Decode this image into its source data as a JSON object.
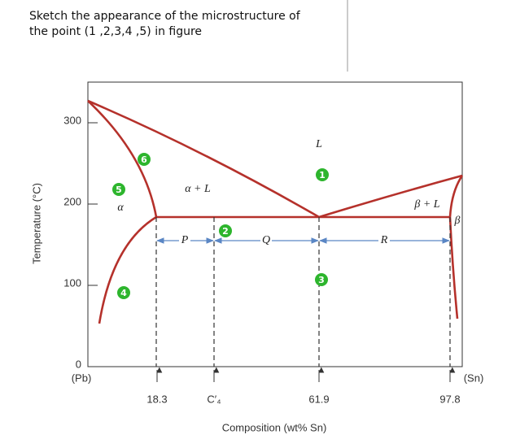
{
  "question": {
    "lines": [
      "Sketch the appearance of the microstructure of",
      "the point (1 ,2,3,4 ,5) in figure"
    ]
  },
  "figure": {
    "y_label": "Temperature (°C)",
    "x_label": "Composition (wt% Sn)",
    "ylim": [
      0,
      350
    ],
    "yticks": [
      0,
      100,
      200,
      300
    ],
    "x_labels": [
      "(Pb)",
      "18.3",
      "C′₄",
      "61.9",
      "97.8",
      "(Sn)"
    ],
    "regions": [
      "L",
      "α + L",
      "β + L",
      "α",
      "β"
    ],
    "spans": [
      "P",
      "Q",
      "R"
    ],
    "points": [
      "1",
      "2",
      "3",
      "4",
      "5",
      "6"
    ]
  }
}
